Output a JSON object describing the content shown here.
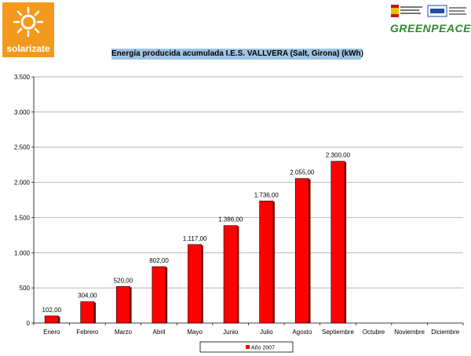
{
  "logos": {
    "solarizate_text": "solarizate",
    "greenpeace_text": "GREENPEACE"
  },
  "colors": {
    "bar_fill": "#ff0000",
    "bar_shadow": "#7a0000",
    "grid": "#9a9a9a",
    "title_bg": "#9ec3e2",
    "solarizate_bg": "#f39a1e"
  },
  "chart_data": {
    "type": "bar",
    "title": "Energía producida acumulada I.E.S. VALLVERA (Salt, Girona) (kWh)",
    "categories": [
      "Enero",
      "Febrero",
      "Marzo",
      "Abril",
      "Mayo",
      "Junio",
      "Julio",
      "Agosto",
      "Septiembre",
      "Octubre",
      "Noviembre",
      "Diciembre"
    ],
    "series": [
      {
        "name": "Año 2007",
        "values": [
          102,
          304,
          520,
          802,
          1117,
          1386,
          1736,
          2055,
          2300,
          null,
          null,
          null
        ],
        "labels": [
          "102,00",
          "304,00",
          "520,00",
          "802,00",
          "1.117,00",
          "1.386,00",
          "1.736,00",
          "2.055,00",
          "2.300,00",
          "",
          "",
          ""
        ]
      }
    ],
    "yticks": [
      0,
      500,
      1000,
      1500,
      2000,
      2500,
      3000,
      3500
    ],
    "ytick_labels": [
      "0",
      "500",
      "1.000",
      "1.500",
      "2.000",
      "2.500",
      "3.000",
      "3.500"
    ],
    "ylim": [
      0,
      3500
    ],
    "grid": true,
    "legend_position": "bottom"
  }
}
